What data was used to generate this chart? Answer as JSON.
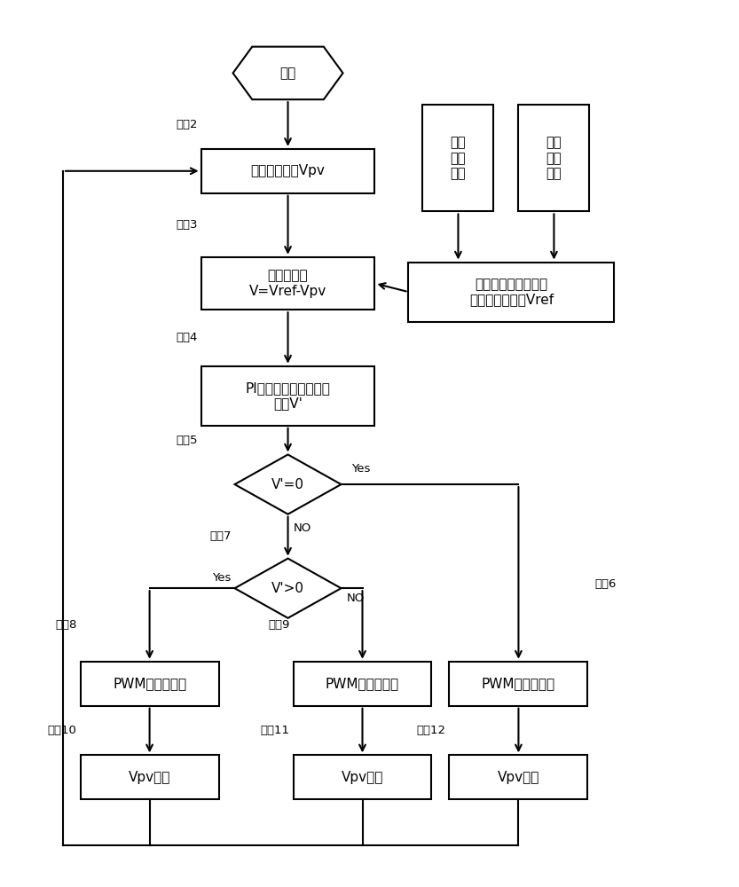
{
  "bg_color": "#ffffff",
  "line_color": "#000000",
  "box_fill": "#ffffff",
  "box_edge": "#000000",
  "text_color": "#000000",
  "font_size": 11,
  "font_size_small": 9.5,
  "nodes": {
    "start_label": "启动",
    "s2_label": "阵列电压采集Vpv",
    "s3_label": "加法器运算\nV=Vref-Vpv",
    "s4_label": "PI调节器调节误差信号\n输出V'",
    "s5_label": "V'=0",
    "s7_label": "V'>0",
    "s8_label": "PWM占空比减少",
    "s9_label": "PWM占空比增大",
    "s6_label": "PWM占空比不变",
    "s10_label": "Vpv增大",
    "s11_label": "Vpv减小",
    "s12_label": "Vpv不变",
    "sens1_label": "环境\n温度\n采集",
    "sens2_label": "光照\n强度\n采集",
    "dual_label": "双线性近似值运算电\n路输出参考电压Vref"
  },
  "step_labels": {
    "s2": "步骤2",
    "s3": "步骤3",
    "s4": "步骤4",
    "s5": "步骤5",
    "s7": "步骤7",
    "s8": "步骤8",
    "s9": "步骤9",
    "s6": "步骤6",
    "s10": "步骤10",
    "s11": "步骤11",
    "s12": "步骤12"
  },
  "branch_labels": {
    "yes5": "Yes",
    "no5": "NO",
    "yes7": "Yes",
    "no7": "NO"
  }
}
